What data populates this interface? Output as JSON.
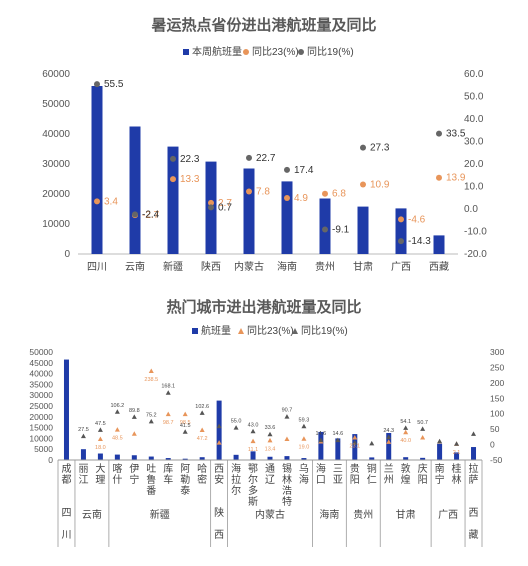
{
  "chart_data": [
    {
      "type": "bar",
      "title": "暑运热点省份进出港航班量及同比",
      "categories": [
        "四川",
        "云南",
        "新疆",
        "陕西",
        "内蒙古",
        "海南",
        "贵州",
        "甘肃",
        "广西",
        "西藏"
      ],
      "series": [
        {
          "name": "本周航班量",
          "axis": "left",
          "color": "#1F3BA8",
          "values": [
            56000,
            42500,
            35800,
            30800,
            28500,
            24200,
            18500,
            15800,
            15200,
            6200
          ]
        },
        {
          "name": "同比23(%)",
          "axis": "right",
          "color": "#E8955A",
          "values": [
            3.4,
            -2.7,
            13.3,
            2.7,
            7.8,
            4.9,
            6.8,
            10.9,
            -4.6,
            13.9
          ]
        },
        {
          "name": "同比19(%)",
          "axis": "right",
          "color": "#666666",
          "values": [
            55.5,
            -2.4,
            22.3,
            0.7,
            22.7,
            17.4,
            -9.1,
            27.3,
            -14.3,
            33.5
          ]
        }
      ],
      "ylim_left": [
        0,
        60000
      ],
      "yticks_left": [
        "0",
        "10000",
        "20000",
        "30000",
        "40000",
        "50000",
        "60000"
      ],
      "ylim_right": [
        -20,
        60
      ],
      "yticks_right": [
        "-20.0",
        "-10.0",
        "0.0",
        "10.0",
        "20.0",
        "30.0",
        "40.0",
        "50.0",
        "60.0"
      ],
      "legend": "top"
    },
    {
      "type": "bar",
      "title": "热门城市进出港航班量及同比",
      "categories": [
        "成都",
        "丽江",
        "大理",
        "喀什",
        "伊宁",
        "吐鲁番",
        "库车",
        "阿勒泰",
        "哈密",
        "西安",
        "海拉尔",
        "鄂尔多斯",
        "通辽",
        "锡林浩特",
        "乌海",
        "海口",
        "三亚",
        "贵阳",
        "铜仁",
        "兰州",
        "敦煌",
        "庆阳",
        "南宁",
        "桂林",
        "拉萨"
      ],
      "category_labels": [
        "成\n都",
        "丽\n江",
        "大\n理",
        "喀\n什",
        "伊\n宁",
        "吐\n鲁\n番",
        "库\n车",
        "阿\n勒\n泰",
        "哈\n密",
        "西\n安",
        "海\n拉\n尔",
        "鄂\n尔\n多\n斯",
        "通\n辽",
        "锡\n林\n浩\n特",
        "乌\n海",
        "海\n口",
        "三\n亚",
        "贵\n阳",
        "铜\n仁",
        "兰\n州",
        "敦\n煌",
        "庆\n阳",
        "南\n宁",
        "桂\n林",
        "拉\n萨"
      ],
      "groups": [
        {
          "label": "四\n川",
          "count": 1
        },
        {
          "label": "云南",
          "count": 2
        },
        {
          "label": "新疆",
          "count": 6
        },
        {
          "label": "陕\n西",
          "count": 1
        },
        {
          "label": "内蒙古",
          "count": 5
        },
        {
          "label": "海南",
          "count": 2
        },
        {
          "label": "贵州",
          "count": 2
        },
        {
          "label": "甘肃",
          "count": 3
        },
        {
          "label": "广西",
          "count": 2
        },
        {
          "label": "西\n藏",
          "count": 1
        }
      ],
      "series": [
        {
          "name": "航班量",
          "axis": "left",
          "color": "#1F3BA8",
          "values": [
            46500,
            5000,
            3000,
            2500,
            2200,
            1600,
            900,
            600,
            1300,
            27500,
            2400,
            4000,
            1500,
            1800,
            900,
            13000,
            10000,
            12000,
            1200,
            12500,
            1300,
            1000,
            7500,
            3500,
            6000
          ]
        },
        {
          "name": "同比23(%)",
          "axis": "right",
          "color": "#E8955A",
          "values": [
            null,
            null,
            18.0,
            48.5,
            35.0,
            238.5,
            98.7,
            98.5,
            47.2,
            6.5,
            null,
            11.1,
            13.4,
            18.0,
            19.0,
            10.0,
            null,
            23.1,
            null,
            8.6,
            40.0,
            23.1,
            10.0,
            2.1,
            null
          ]
        },
        {
          "name": "同比19(%)",
          "axis": "right",
          "color": "#666666",
          "values": [
            null,
            27.5,
            47.5,
            106.2,
            89.8,
            75.2,
            168.1,
            41.5,
            102.6,
            59.6,
            55.0,
            43.0,
            33.6,
            90.7,
            59.3,
            14.6,
            14.6,
            6.4,
            3.8,
            24.3,
            54.1,
            50.7,
            10.6,
            2.6,
            34.6
          ]
        }
      ],
      "labels_23": [
        "",
        "",
        "18.0",
        "48.5",
        "",
        "238.5",
        "98.7",
        "98.5",
        "47.2",
        "",
        "",
        "11.1",
        "13.4",
        "",
        "19.0",
        "",
        "",
        "23.1",
        "",
        "",
        "40.0",
        "",
        "",
        "2.1",
        ""
      ],
      "labels_19": [
        "",
        "27.5",
        "47.5",
        "106.2",
        "89.8",
        "75.2",
        "168.1",
        "41.5",
        "102.6",
        "",
        "55.0",
        "43.0",
        "33.6",
        "90.7",
        "59.3",
        "14.6",
        "14.6",
        "",
        "",
        "24.3",
        "54.1",
        "50.7",
        "",
        "",
        ""
      ],
      "ylim_left": [
        0,
        50000
      ],
      "yticks_left": [
        "0",
        "5000",
        "10000",
        "15000",
        "20000",
        "25000",
        "30000",
        "35000",
        "40000",
        "45000",
        "50000"
      ],
      "ylim_right": [
        -50,
        300
      ],
      "yticks_right": [
        "-50",
        "0",
        "50",
        "100",
        "150",
        "200",
        "250",
        "300"
      ],
      "legend": "top"
    }
  ]
}
